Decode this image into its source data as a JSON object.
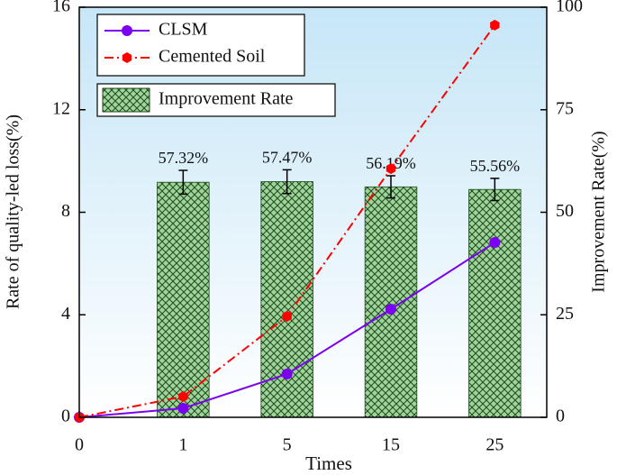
{
  "chart_data": {
    "type": "combo",
    "xlabel": "Times",
    "ylabel": "Rate of quality-led loss(%)",
    "y2label": "Improvement Rate(%)",
    "categories": [
      "0",
      "1",
      "5",
      "15",
      "25"
    ],
    "ylim": [
      0,
      16
    ],
    "yticks": [
      0,
      4,
      8,
      12,
      16
    ],
    "y2lim": [
      0,
      100
    ],
    "y2ticks": [
      0,
      25,
      50,
      75,
      100
    ],
    "series": [
      {
        "name": "CLSM",
        "type": "line",
        "color": "#7b00f0",
        "marker": "circle",
        "values": [
          0,
          0.35,
          1.69,
          4.22,
          6.82
        ]
      },
      {
        "name": "Cemented Soil",
        "type": "line",
        "color": "#ff0000",
        "marker": "hexagon",
        "dash": "dashdot",
        "values": [
          0,
          0.81,
          3.94,
          9.7,
          15.3
        ]
      },
      {
        "name": "Improvement Rate",
        "type": "bar",
        "axis": "y2",
        "color": "#9fd49a",
        "values": [
          null,
          57.32,
          57.47,
          56.19,
          55.56
        ],
        "errors": [
          null,
          2.9,
          2.9,
          2.7,
          2.7
        ],
        "value_labels": [
          null,
          "57.32%",
          "57.47%",
          "56.19%",
          "55.56%"
        ]
      }
    ]
  }
}
